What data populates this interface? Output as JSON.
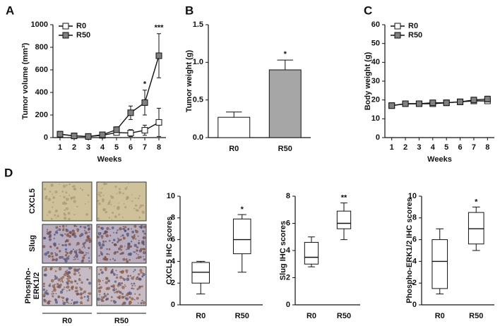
{
  "chart_data": [
    {
      "type": "line",
      "panel": "A",
      "ylabel": "Tumor volume  (mm³)",
      "xlabel": "Weeks",
      "x": [
        1,
        2,
        3,
        4,
        5,
        6,
        7,
        8
      ],
      "xlim": [
        0.5,
        8.5
      ],
      "xticks": [
        1,
        2,
        3,
        4,
        5,
        6,
        7,
        8
      ],
      "ylim": [
        0,
        1000
      ],
      "yticks": [
        0,
        200,
        400,
        600,
        800,
        1000
      ],
      "legend": "upper left",
      "series": [
        {
          "name": "R0",
          "color": "#ffffff",
          "values": [
            30,
            15,
            10,
            20,
            45,
            40,
            65,
            135
          ],
          "errors": [
            10,
            8,
            8,
            10,
            15,
            30,
            45,
            125
          ],
          "significance": [
            null,
            null,
            null,
            null,
            null,
            null,
            null,
            null
          ]
        },
        {
          "name": "R50",
          "color": "#808080",
          "values": [
            30,
            15,
            10,
            25,
            70,
            220,
            310,
            725
          ],
          "errors": [
            10,
            8,
            8,
            15,
            25,
            60,
            110,
            195
          ],
          "significance": [
            null,
            null,
            null,
            null,
            null,
            null,
            "*",
            "***"
          ]
        }
      ]
    },
    {
      "type": "bar",
      "panel": "B",
      "ylabel": "Tumor weight (g)",
      "categories": [
        "R0",
        "R50"
      ],
      "values": [
        0.27,
        0.9
      ],
      "errors": [
        0.07,
        0.13
      ],
      "colors": [
        "#ffffff",
        "#a6a6a6"
      ],
      "significance": [
        null,
        "*"
      ],
      "ylim": [
        0,
        1.5
      ],
      "yticks": [
        {
          "value": 0,
          "label": "0.0"
        },
        0.5,
        {
          "value": 1,
          "label": "1.0"
        },
        1.5
      ]
    },
    {
      "type": "line",
      "panel": "C",
      "ylabel": "Body weight  (g)",
      "xlabel": "Weeks",
      "x": [
        1,
        2,
        3,
        4,
        5,
        6,
        7,
        8
      ],
      "xlim": [
        0.5,
        8.5
      ],
      "xticks": [
        1,
        2,
        3,
        4,
        5,
        6,
        7,
        8
      ],
      "ylim": [
        0,
        60
      ],
      "yticks": [
        0,
        10,
        20,
        30,
        40,
        50,
        60
      ],
      "legend": "upper left",
      "series": [
        {
          "name": "R0",
          "color": "#ffffff",
          "values": [
            17,
            18,
            18,
            18,
            18.5,
            19,
            19.5,
            19.5
          ],
          "errors": [
            0.8,
            0.8,
            0.8,
            0.8,
            1,
            1,
            1,
            1.2
          ],
          "significance": [
            null,
            null,
            null,
            null,
            null,
            null,
            null,
            null
          ]
        },
        {
          "name": "R50",
          "color": "#808080",
          "values": [
            17,
            18,
            18,
            18.5,
            18.5,
            19,
            20,
            20.5
          ],
          "errors": [
            0.8,
            0.8,
            0.8,
            0.8,
            1,
            1,
            1,
            1.5
          ],
          "significance": [
            null,
            null,
            null,
            null,
            null,
            null,
            null,
            null
          ]
        }
      ]
    },
    {
      "type": "box",
      "ylabel": "CXCL5 IHC scores",
      "categories": [
        "R0",
        "R50"
      ],
      "boxes": [
        {
          "min": 1,
          "q1": 2,
          "median": 3,
          "q3": 3.9,
          "max": 4
        },
        {
          "min": 3,
          "q1": 4.7,
          "median": 6,
          "q3": 7.9,
          "max": 8.3
        }
      ],
      "significance": [
        null,
        "*"
      ],
      "ylim": [
        0,
        10
      ],
      "yticks": [
        0,
        2,
        4,
        6,
        8,
        10
      ]
    },
    {
      "type": "box",
      "ylabel": "Slug IHC scores",
      "categories": [
        "R0",
        "R50"
      ],
      "boxes": [
        {
          "min": 2.8,
          "q1": 3,
          "median": 3.5,
          "q3": 4.6,
          "max": 5
        },
        {
          "min": 4.8,
          "q1": 5.6,
          "median": 6,
          "q3": 6.9,
          "max": 7.5
        }
      ],
      "significance": [
        null,
        "**"
      ],
      "ylim": [
        0,
        8
      ],
      "yticks": [
        0,
        2,
        4,
        6,
        8
      ]
    },
    {
      "type": "box",
      "ylabel": "Phospho-ERK1/2 IHC scores",
      "categories": [
        "R0",
        "R50"
      ],
      "boxes": [
        {
          "min": 1,
          "q1": 1.5,
          "median": 4,
          "q3": 6,
          "max": 7
        },
        {
          "min": 5,
          "q1": 5.6,
          "median": 7,
          "q3": 8.5,
          "max": 9
        }
      ],
      "significance": [
        null,
        "*"
      ],
      "ylim": [
        0,
        10
      ],
      "yticks": [
        0,
        2,
        4,
        6,
        8,
        10
      ]
    }
  ],
  "images": {
    "panel": "D",
    "rows": [
      [
        "CXCL5"
      ],
      [
        "Slug"
      ],
      [
        "Phospho-",
        "ERK1/2"
      ]
    ],
    "columns": [
      "R0",
      "R50"
    ]
  }
}
